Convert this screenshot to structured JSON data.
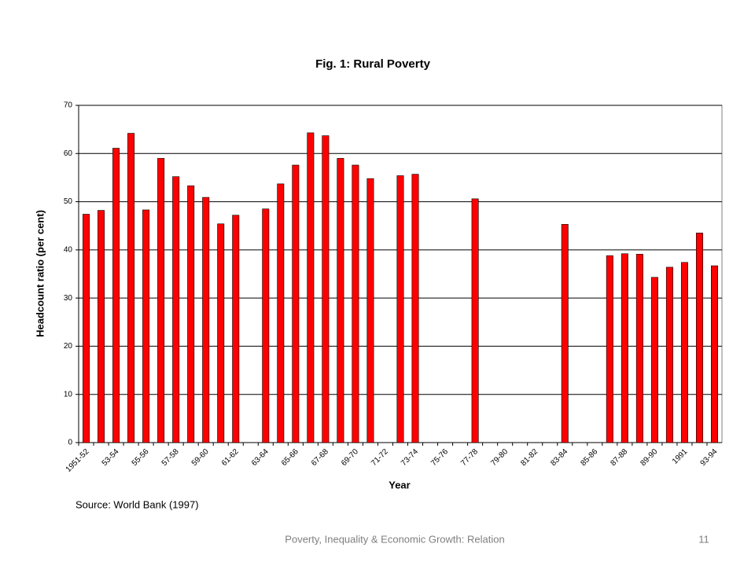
{
  "chart_data": {
    "type": "bar",
    "title": "Fig. 1: Rural Poverty",
    "x_label": "Year",
    "y_label": "Headcount ratio (per cent)",
    "source": "Source: World Bank (1997)",
    "categories": [
      "1951-52",
      null,
      "53-54",
      null,
      "55-56",
      null,
      "57-58",
      null,
      "59-60",
      null,
      "61-62",
      null,
      "63-64",
      null,
      "65-66",
      null,
      "67-68",
      null,
      "69-70",
      null,
      "71-72",
      null,
      "73-74",
      null,
      "75-76",
      null,
      "77-78",
      null,
      "79-80",
      null,
      "81-82",
      null,
      "83-84",
      null,
      "85-86",
      null,
      "87-88",
      null,
      "89-90",
      null,
      "1991",
      null,
      "93-94"
    ],
    "values": [
      47.4,
      48.2,
      61.1,
      64.2,
      48.3,
      59.0,
      55.2,
      53.3,
      50.9,
      45.4,
      47.2,
      null,
      48.5,
      53.7,
      57.6,
      64.3,
      63.7,
      59.0,
      57.6,
      54.8,
      null,
      55.4,
      55.7,
      null,
      null,
      null,
      50.6,
      null,
      null,
      null,
      null,
      null,
      45.3,
      null,
      null,
      38.8,
      39.2,
      39.1,
      34.3,
      36.4,
      37.4,
      43.5,
      36.7
    ],
    "color": "#ff0000",
    "ylim": [
      0,
      70
    ],
    "yticks": [
      0,
      10,
      20,
      30,
      40,
      50,
      60,
      70
    ],
    "grid": true
  },
  "footer": {
    "text": "Poverty, Inequality & Economic Growth: Relation",
    "page": "11"
  }
}
